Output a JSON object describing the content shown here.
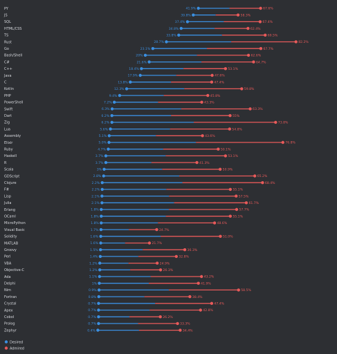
{
  "colors": {
    "desired": "#3b8fe0",
    "admired": "#e85a5a",
    "background": "#2d2f33",
    "text": "#d9dbe0"
  },
  "legend": {
    "desired": "Desired",
    "admired": "Admired"
  },
  "chart_data": {
    "type": "dumbbell",
    "x_range_percent": [
      0,
      90
    ],
    "series": [
      {
        "name": "Desired",
        "color": "#3b8fe0"
      },
      {
        "name": "Admired",
        "color": "#e85a5a"
      }
    ],
    "rows": [
      {
        "category": "PY",
        "desired": 41.9,
        "desired_label": "41.9%",
        "admired": 67.6,
        "admired_label": "67.6%"
      },
      {
        "category": "JS",
        "desired": 39.8,
        "desired_label": "39.8%",
        "admired": 58.3,
        "admired_label": "58.3%"
      },
      {
        "category": "SQL",
        "desired": 37.4,
        "desired_label": "37.4%",
        "admired": 67.4,
        "admired_label": "67.4%"
      },
      {
        "category": "HTML/CSS",
        "desired": 34.8,
        "desired_label": "34.8%",
        "admired": 62.4,
        "admired_label": "62.4%"
      },
      {
        "category": "TS",
        "desired": 33.8,
        "desired_label": "33.8%",
        "admired": 69.5,
        "admired_label": "69.5%"
      },
      {
        "category": "Rust",
        "desired": 28.7,
        "desired_label": "28.7%",
        "admired": 82.2,
        "admired_label": "82.2%"
      },
      {
        "category": "Go",
        "desired": 23.1,
        "desired_label": "23.1%",
        "admired": 67.7,
        "admired_label": "67.7%"
      },
      {
        "category": "Bash/Shell",
        "desired": 20.0,
        "desired_label": "20%",
        "admired": 62.6,
        "admired_label": "62.6%"
      },
      {
        "category": "C#",
        "desired": 21.6,
        "desired_label": "21.6%",
        "admired": 64.7,
        "admired_label": "64.7%"
      },
      {
        "category": "C++",
        "desired": 18.4,
        "desired_label": "18.4%",
        "admired": 53.1,
        "admired_label": "53.1%"
      },
      {
        "category": "Java",
        "desired": 17.9,
        "desired_label": "17.9%",
        "admired": 47.6,
        "admired_label": "47.6%"
      },
      {
        "category": "C",
        "desired": 13.8,
        "desired_label": "13.8%",
        "admired": 47.4,
        "admired_label": "47.4%"
      },
      {
        "category": "Kotlin",
        "desired": 12.3,
        "desired_label": "12.3%",
        "admired": 59.8,
        "admired_label": "59.8%"
      },
      {
        "category": "PHP",
        "desired": 9.4,
        "desired_label": "9.4%",
        "admired": 45.8,
        "admired_label": "45.8%"
      },
      {
        "category": "PowerShell",
        "desired": 7.2,
        "desired_label": "7.2%",
        "admired": 43.3,
        "admired_label": "43.3%"
      },
      {
        "category": "Swift",
        "desired": 6.3,
        "desired_label": "6.3%",
        "admired": 63.3,
        "admired_label": "63.3%"
      },
      {
        "category": "Dart",
        "desired": 6.2,
        "desired_label": "6.2%",
        "admired": 55.0,
        "admired_label": "55%"
      },
      {
        "category": "Zig",
        "desired": 6.2,
        "desired_label": "6.2%",
        "admired": 73.8,
        "admired_label": "73.8%"
      },
      {
        "category": "Lua",
        "desired": 5.6,
        "desired_label": "5.6%",
        "admired": 54.8,
        "admired_label": "54.8%"
      },
      {
        "category": "Assembly",
        "desired": 5.1,
        "desired_label": "5.1%",
        "admired": 43.6,
        "admired_label": "43.6%"
      },
      {
        "category": "Elixir",
        "desired": 5.0,
        "desired_label": "5.0%",
        "admired": 76.8,
        "admired_label": "76.8%"
      },
      {
        "category": "Ruby",
        "desired": 4.7,
        "desired_label": "4.7%",
        "admired": 50.1,
        "admired_label": "50.1%"
      },
      {
        "category": "Haskell",
        "desired": 3.7,
        "desired_label": "3.7%",
        "admired": 53.1,
        "admired_label": "53.1%"
      },
      {
        "category": "R",
        "desired": 3.7,
        "desired_label": "3.7%",
        "admired": 41.3,
        "admired_label": "41.3%"
      },
      {
        "category": "Scala",
        "desired": 3.0,
        "desired_label": "3%",
        "admired": 50.9,
        "admired_label": "50.9%"
      },
      {
        "category": "GDScript",
        "desired": 2.8,
        "desired_label": "2.8%",
        "admired": 65.2,
        "admired_label": "65.2%"
      },
      {
        "category": "Clojure",
        "desired": 2.2,
        "desired_label": "2.2%",
        "admired": 68.4,
        "admired_label": "68.4%"
      },
      {
        "category": "F#",
        "desired": 2.2,
        "desired_label": "2.2%",
        "admired": 55.1,
        "admired_label": "55.1%"
      },
      {
        "category": "Lisp",
        "desired": 2.1,
        "desired_label": "2.1%",
        "admired": 57.5,
        "admired_label": "57.5%"
      },
      {
        "category": "Julia",
        "desired": 2.1,
        "desired_label": "2.1%",
        "admired": 61.7,
        "admired_label": "61.7%"
      },
      {
        "category": "Erlang",
        "desired": 1.8,
        "desired_label": "1.8%",
        "admired": 57.7,
        "admired_label": "57.7%"
      },
      {
        "category": "OCaml",
        "desired": 1.8,
        "desired_label": "1.8%",
        "admired": 55.1,
        "admired_label": "55.1%"
      },
      {
        "category": "MicroPython",
        "desired": 1.8,
        "desired_label": "1.8%",
        "admired": 48.6,
        "admired_label": "48.6%"
      },
      {
        "category": "Visual Basic",
        "desired": 1.7,
        "desired_label": "1.7%",
        "admired": 24.7,
        "admired_label": "24.7%"
      },
      {
        "category": "Solidity",
        "desired": 1.6,
        "desired_label": "1.6%",
        "admired": 51.0,
        "admired_label": "51.0%"
      },
      {
        "category": "MATLAB",
        "desired": 1.6,
        "desired_label": "1.6%",
        "admired": 21.7,
        "admired_label": "21.7%"
      },
      {
        "category": "Groovy",
        "desired": 1.5,
        "desired_label": "1.5%",
        "admired": 36.3,
        "admired_label": "36.3%"
      },
      {
        "category": "Perl",
        "desired": 1.4,
        "desired_label": "1.4%",
        "admired": 32.8,
        "admired_label": "32.8%"
      },
      {
        "category": "VBA",
        "desired": 1.2,
        "desired_label": "1.2%",
        "admired": 24.9,
        "admired_label": "24.9%"
      },
      {
        "category": "Objective-C",
        "desired": 1.2,
        "desired_label": "1.2%",
        "admired": 26.3,
        "admired_label": "26.3%"
      },
      {
        "category": "Ada",
        "desired": 1.1,
        "desired_label": "1.1%",
        "admired": 43.2,
        "admired_label": "43.2%"
      },
      {
        "category": "Delphi",
        "desired": 1.0,
        "desired_label": "1%",
        "admired": 41.9,
        "admired_label": "41.9%"
      },
      {
        "category": "Nim",
        "desired": 0.9,
        "desired_label": "0.9%",
        "admired": 58.5,
        "admired_label": "58.5%"
      },
      {
        "category": "Fortran",
        "desired": 0.8,
        "desired_label": "0.8%",
        "admired": 38.4,
        "admired_label": "38.4%"
      },
      {
        "category": "Crystal",
        "desired": 0.7,
        "desired_label": "0.7%",
        "admired": 47.4,
        "admired_label": "47.4%"
      },
      {
        "category": "Apex",
        "desired": 0.7,
        "desired_label": "0.7%",
        "admired": 42.8,
        "admired_label": "42.8%"
      },
      {
        "category": "Cobol",
        "desired": 0.7,
        "desired_label": "0.7%",
        "admired": 26.2,
        "admired_label": "26.2%"
      },
      {
        "category": "Prolog",
        "desired": 0.7,
        "desired_label": "0.7%",
        "admired": 33.3,
        "admired_label": "33.3%"
      },
      {
        "category": "Zephyr",
        "desired": 0.4,
        "desired_label": "0.4%",
        "admired": 34.4,
        "admired_label": "34.4%"
      }
    ]
  }
}
